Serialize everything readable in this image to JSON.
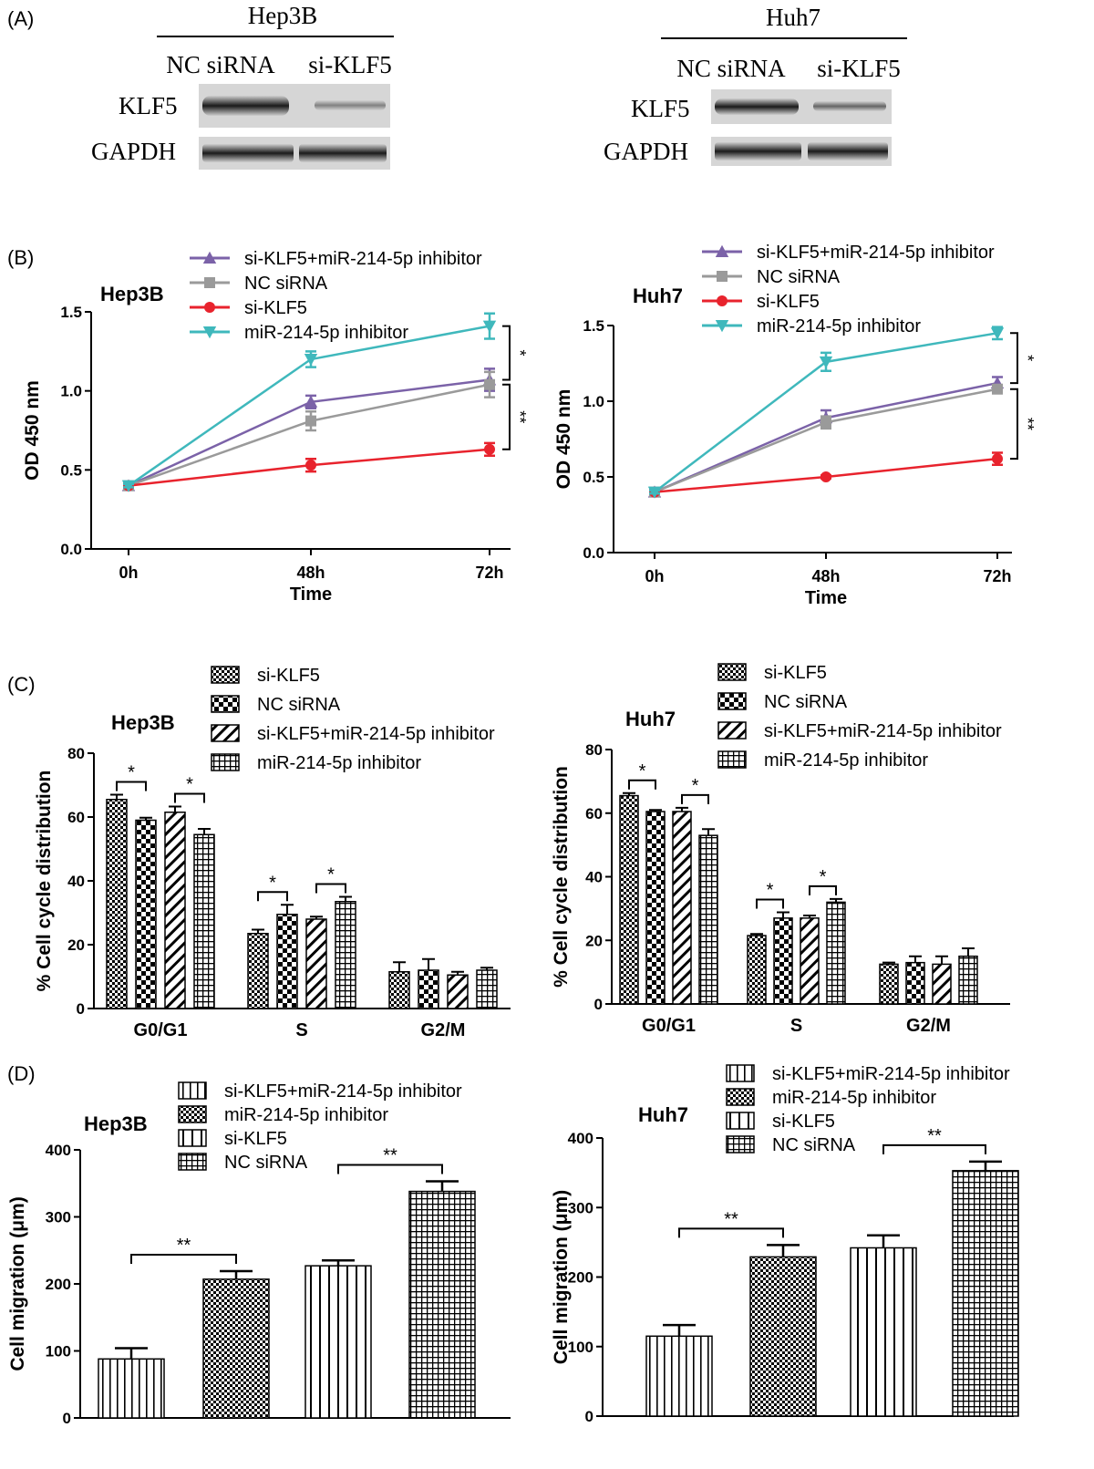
{
  "panels": {
    "A": "(A)",
    "B": "(B)",
    "C": "(C)",
    "D": "(D)"
  },
  "western_blot": {
    "blots": [
      {
        "cell_line": "Hep3B",
        "lanes": [
          "NC siRNA",
          "si-KLF5"
        ],
        "rows": [
          {
            "label": "KLF5",
            "intensity": [
              0.9,
              0.25
            ]
          },
          {
            "label": "GAPDH",
            "intensity": [
              0.9,
              0.9
            ]
          }
        ]
      },
      {
        "cell_line": "Huh7",
        "lanes": [
          "NC siRNA",
          "si-KLF5"
        ],
        "rows": [
          {
            "label": "KLF5",
            "intensity": [
              0.85,
              0.35
            ]
          },
          {
            "label": "GAPDH",
            "intensity": [
              0.9,
              0.9
            ]
          }
        ]
      }
    ]
  },
  "chart_data": [
    {
      "type": "line",
      "title": "Hep3B",
      "xlabel": "Time",
      "ylabel": "OD 450 nm",
      "categories": [
        "0h",
        "48h",
        "72h"
      ],
      "ylim": [
        0,
        1.5
      ],
      "yticks": [
        "0.0",
        "0.5",
        "1.0",
        "1.5"
      ],
      "legend": "top",
      "series": [
        {
          "name": "si-KLF5+miR-214-5p inhibitor",
          "color": "#7b62a8",
          "marker": "triangle-up",
          "values": [
            0.4,
            0.93,
            1.07
          ],
          "errors": [
            0.01,
            0.04,
            0.07
          ]
        },
        {
          "name": "NC siRNA",
          "color": "#9a9a9a",
          "marker": "square",
          "values": [
            0.4,
            0.81,
            1.04
          ],
          "errors": [
            0.01,
            0.06,
            0.08
          ]
        },
        {
          "name": "si-KLF5",
          "color": "#e8232d",
          "marker": "circle",
          "values": [
            0.4,
            0.53,
            0.63
          ],
          "errors": [
            0.01,
            0.04,
            0.04
          ]
        },
        {
          "name": "miR-214-5p inhibitor",
          "color": "#3fb8bc",
          "marker": "triangle-down",
          "values": [
            0.4,
            1.2,
            1.41
          ],
          "errors": [
            0.01,
            0.05,
            0.08
          ]
        }
      ],
      "significance": [
        "*",
        "**"
      ]
    },
    {
      "type": "line",
      "title": "Huh7",
      "xlabel": "Time",
      "ylabel": "OD 450 nm",
      "categories": [
        "0h",
        "48h",
        "72h"
      ],
      "ylim": [
        0,
        1.5
      ],
      "yticks": [
        "0.0",
        "0.5",
        "1.0",
        "1.5"
      ],
      "legend": "top",
      "series": [
        {
          "name": "si-KLF5+miR-214-5p inhibitor",
          "color": "#7b62a8",
          "marker": "triangle-up",
          "values": [
            0.4,
            0.89,
            1.12
          ],
          "errors": [
            0.01,
            0.05,
            0.04
          ]
        },
        {
          "name": "NC siRNA",
          "color": "#9a9a9a",
          "marker": "square",
          "values": [
            0.4,
            0.86,
            1.08
          ],
          "errors": [
            0.01,
            0.04,
            0.02
          ]
        },
        {
          "name": "si-KLF5",
          "color": "#e8232d",
          "marker": "circle",
          "values": [
            0.4,
            0.5,
            0.62
          ],
          "errors": [
            0.01,
            0.01,
            0.04
          ]
        },
        {
          "name": "miR-214-5p inhibitor",
          "color": "#3fb8bc",
          "marker": "triangle-down",
          "values": [
            0.4,
            1.26,
            1.45
          ],
          "errors": [
            0.01,
            0.06,
            0.04
          ]
        }
      ],
      "significance": [
        "*",
        "**"
      ]
    },
    {
      "type": "bar",
      "title": "Hep3B",
      "xlabel": "",
      "ylabel": "% Cell cycle distribution",
      "categories": [
        "G0/G1",
        "S",
        "G2/M"
      ],
      "ylim": [
        0,
        80
      ],
      "yticks": [
        "0",
        "20",
        "40",
        "60",
        "80"
      ],
      "legend": "top",
      "series": [
        {
          "name": "si-KLF5",
          "pattern": "checker",
          "values": [
            65.5,
            23.5,
            11.5
          ],
          "errors": [
            1.5,
            1.2,
            3.0
          ]
        },
        {
          "name": "NC siRNA",
          "pattern": "checker-large",
          "values": [
            59,
            29.5,
            12
          ],
          "errors": [
            0.8,
            3.0,
            3.5
          ]
        },
        {
          "name": "si-KLF5+miR-214-5p inhibitor",
          "pattern": "diagonal",
          "values": [
            61.5,
            28,
            10.5
          ],
          "errors": [
            1.8,
            0.8,
            1.0
          ]
        },
        {
          "name": "miR-214-5p inhibitor",
          "pattern": "grid",
          "values": [
            54.5,
            33.5,
            12
          ],
          "errors": [
            1.8,
            1.5,
            0.8
          ]
        }
      ],
      "significance": [
        "*",
        "*",
        "*",
        "*"
      ]
    },
    {
      "type": "bar",
      "title": "Huh7",
      "xlabel": "",
      "ylabel": "% Cell cycle distribution",
      "categories": [
        "G0/G1",
        "S",
        "G2/M"
      ],
      "ylim": [
        0,
        80
      ],
      "yticks": [
        "0",
        "20",
        "40",
        "60",
        "80"
      ],
      "legend": "top",
      "series": [
        {
          "name": "si-KLF5",
          "pattern": "checker",
          "values": [
            65.5,
            21.5,
            12.5
          ],
          "errors": [
            0.8,
            0.5,
            0.5
          ]
        },
        {
          "name": "NC siRNA",
          "pattern": "checker-large",
          "values": [
            60.5,
            27,
            13
          ],
          "errors": [
            0.5,
            1.8,
            2.0
          ]
        },
        {
          "name": "si-KLF5+miR-214-5p inhibitor",
          "pattern": "diagonal",
          "values": [
            60.5,
            27,
            12.5
          ],
          "errors": [
            1.2,
            0.8,
            2.5
          ]
        },
        {
          "name": "miR-214-5p inhibitor",
          "pattern": "grid",
          "values": [
            53,
            32,
            15
          ],
          "errors": [
            2.0,
            1.0,
            2.5
          ]
        }
      ],
      "significance": [
        "*",
        "*",
        "*",
        "*"
      ]
    },
    {
      "type": "bar",
      "title": "Hep3B",
      "xlabel": "",
      "ylabel": "Cell migration (μm)",
      "categories": [
        "si-KLF5+miR-214-5p inhibitor",
        "miR-214-5p inhibitor",
        "si-KLF5",
        "NC siRNA"
      ],
      "ylim": [
        0,
        400
      ],
      "yticks": [
        "0",
        "100",
        "200",
        "300",
        "400"
      ],
      "legend": "top",
      "patterns": [
        "vlines",
        "checker",
        "vlines-wide",
        "grid"
      ],
      "values": [
        88,
        207,
        227,
        338
      ],
      "errors": [
        16,
        12,
        8,
        15
      ],
      "significance": [
        "**",
        "**"
      ]
    },
    {
      "type": "bar",
      "title": "Huh7",
      "xlabel": "",
      "ylabel": "Cell migration (μm)",
      "categories": [
        "si-KLF5+miR-214-5p inhibitor",
        "miR-214-5p inhibitor",
        "si-KLF5",
        "NC siRNA"
      ],
      "ylim": [
        0,
        400
      ],
      "yticks": [
        "0",
        "100",
        "200",
        "300",
        "400"
      ],
      "legend": "top",
      "patterns": [
        "vlines",
        "checker",
        "vlines-wide",
        "grid"
      ],
      "values": [
        115,
        229,
        242,
        353
      ],
      "errors": [
        16,
        17,
        18,
        13
      ],
      "significance": [
        "**",
        "**"
      ]
    }
  ]
}
